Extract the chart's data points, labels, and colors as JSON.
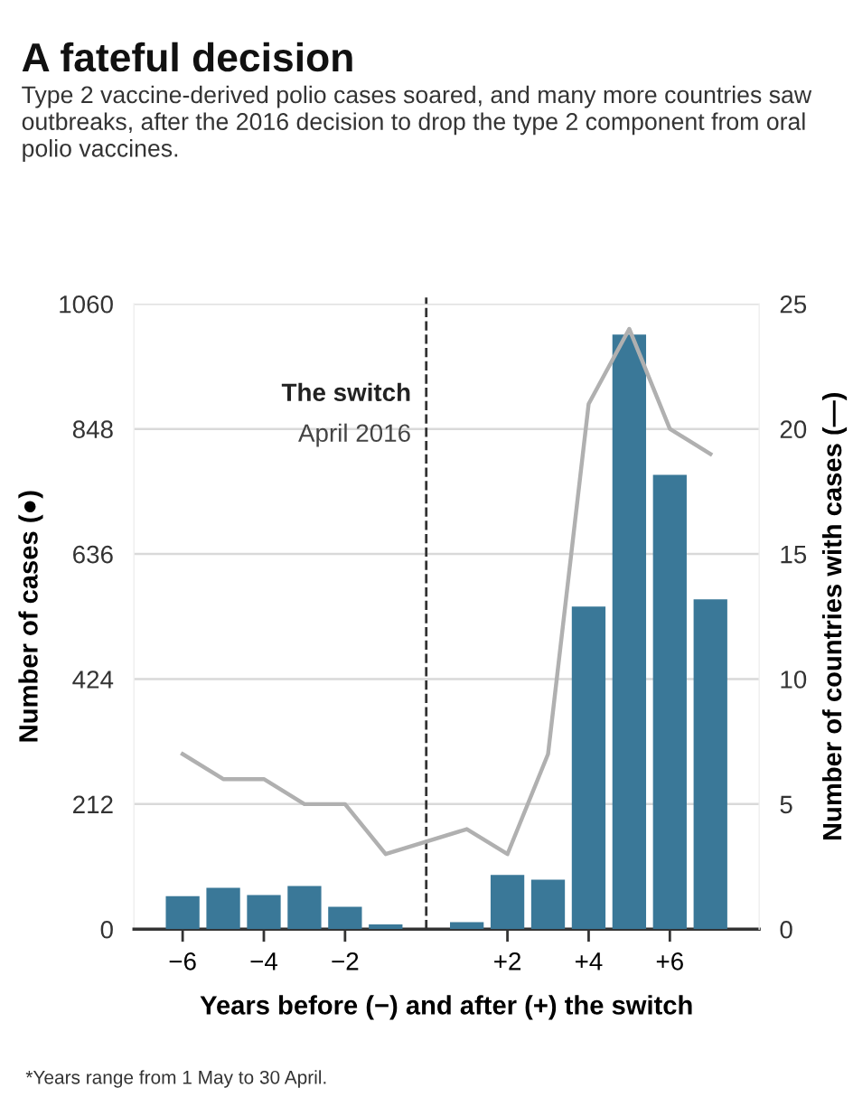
{
  "chart_data": {
    "type": "bar",
    "title": "A fateful decision",
    "subtitle": "Type 2 vaccine-derived polio cases soared, and many more countries saw outbreaks, after the 2016 decision to drop the type 2 component from oral polio vaccines.",
    "xlabel": "Years before (−) and after (+) the switch",
    "ylabel": "Number of cases (●)",
    "y2label": "Number of countries with cases (—)",
    "annotations": [
      "*Years range from 1 May to 30 April."
    ],
    "x": [
      -6,
      -5,
      -4,
      -3,
      -2,
      -1,
      1,
      2,
      3,
      4,
      5,
      6,
      7
    ],
    "series": [
      {
        "color": "#3a7898",
        "values": [
          56,
          70,
          58,
          73,
          38,
          8,
          12,
          92,
          84,
          547,
          1008,
          770,
          559
        ]
      },
      {
        "type": "line",
        "axis": "y2",
        "color": "#b0b0b0",
        "values": [
          7,
          6,
          6,
          5,
          5,
          3,
          4,
          3,
          7,
          21,
          24,
          20,
          19
        ]
      }
    ],
    "xlim": [
      -7.2,
      8.2
    ],
    "xticks": [
      {
        "value": -6,
        "label": "−6"
      },
      {
        "value": -4,
        "label": "−4"
      },
      {
        "value": -2,
        "label": "−2"
      },
      {
        "value": 2,
        "label": "+2"
      },
      {
        "value": 4,
        "label": "+4"
      },
      {
        "value": 6,
        "label": "+6"
      }
    ],
    "ylim": [
      0,
      1060
    ],
    "yticks": [
      0,
      212,
      424,
      636,
      848,
      1060
    ],
    "y2lim": [
      0,
      25
    ],
    "y2ticks": [
      0,
      5,
      10,
      15,
      20,
      25
    ],
    "ref_lines": [
      {
        "axis": "x",
        "value": 0,
        "label": "The switch\nApril 2016",
        "color": "#333333",
        "line_style": "dashed"
      }
    ],
    "grid": "y",
    "marker": "none",
    "line_style": "solid"
  }
}
